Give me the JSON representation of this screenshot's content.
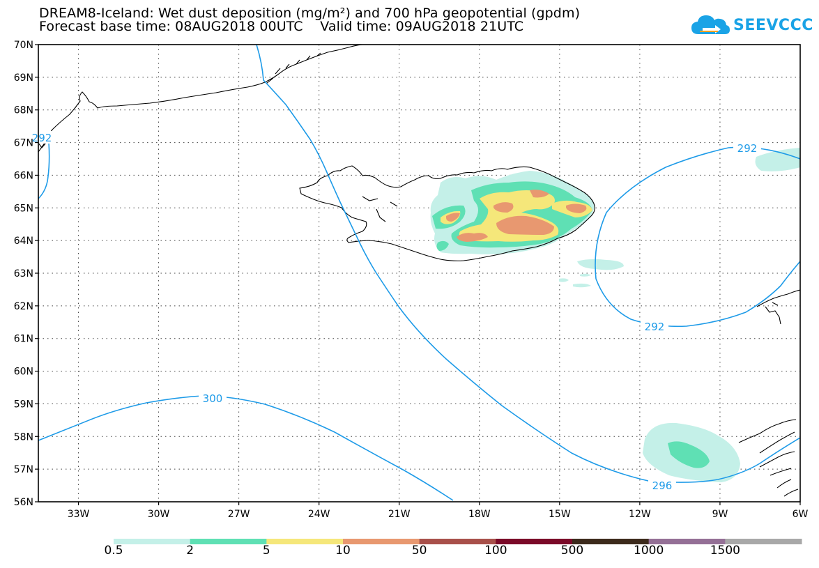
{
  "title": {
    "line1": "DREAM8-Iceland: Wet dust deposition (mg/m²) and 700 hPa geopotential (gpdm)",
    "line2": "Forecast base time: 08AUG2018 00UTC    Valid time: 09AUG2018 21UTC"
  },
  "logo": {
    "text": "SEEVCCC",
    "icon": "cloud-arrow-icon",
    "color": "#1aa3e6"
  },
  "map": {
    "lat_labels": [
      "70N",
      "69N",
      "68N",
      "67N",
      "66N",
      "65N",
      "64N",
      "63N",
      "62N",
      "61N",
      "60N",
      "59N",
      "58N",
      "57N",
      "56N"
    ],
    "lon_labels": [
      "33W",
      "30W",
      "27W",
      "24W",
      "21W",
      "18W",
      "15W",
      "12W",
      "9W",
      "6W"
    ],
    "lat_range": [
      56,
      70
    ],
    "lon_range": [
      -34.5,
      -6
    ],
    "grid": "dotted",
    "contour_labels": [
      "292",
      "292",
      "296",
      "300",
      "292"
    ],
    "contour_color": "#1e9be8",
    "coastline_color": "#000000"
  },
  "colorbar": {
    "labels": [
      "0.5",
      "2",
      "5",
      "10",
      "50",
      "100",
      "500",
      "1000",
      "1500"
    ],
    "colors": [
      "#c4f0e8",
      "#5fe0b4",
      "#f5e77a",
      "#e89870",
      "#a8504a",
      "#7a0a28",
      "#3c2a1c",
      "#947096",
      "#a8a8a8"
    ]
  }
}
